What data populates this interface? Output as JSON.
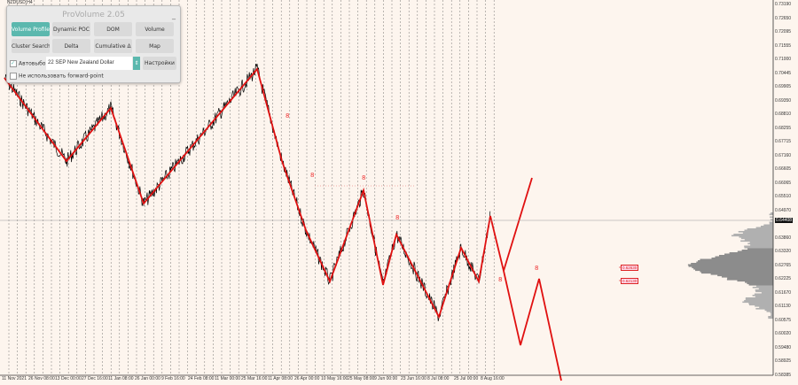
{
  "symbol": "NZDUSD,H4",
  "panel": {
    "title": "ProVolume 2.05",
    "minimize": "_",
    "buttons": [
      "Volume Profile",
      "Dynamic POC",
      "DOM",
      "Volume",
      "Cluster Search",
      "Delta",
      "Cumulative Δ",
      "Map"
    ],
    "active_button": "Volume Profile",
    "auto_select_label": "Автовыбор",
    "auto_select_checked": true,
    "instrument": "22 SEP New Zealand Dollar",
    "settings_label": "Настройки",
    "forward_point_label": "Не использовать forward-point",
    "forward_point_checked": false
  },
  "price_axis": [
    "0.73190",
    "0.72650",
    "0.72095",
    "0.71555",
    "0.71000",
    "0.70445",
    "0.69905",
    "0.69350",
    "0.68810",
    "0.68255",
    "0.67715",
    "0.67160",
    "0.66605",
    "0.66065",
    "0.65510",
    "0.64970",
    "0.64408",
    "0.63860",
    "0.63320",
    "0.62765",
    "0.62225",
    "0.61670",
    "0.61130",
    "0.60575",
    "0.60020",
    "0.59480",
    "0.58925",
    "0.58385"
  ],
  "current_price": "0.64408",
  "date_axis": [
    "11 Nov 2021",
    "26 Nov 08:00",
    "13 Dec 00:00",
    "27 Dec 16:00",
    "11 Jan 08:00",
    "26 Jan 00:00",
    "9 Feb 16:00",
    "24 Feb 08:00",
    "11 Mar 00:00",
    "25 Mar 16:00",
    "11 Apr 08:00",
    "26 Apr 00:00",
    "10 May 16:00",
    "25 May 08:00",
    "9 Jun 00:00",
    "23 Jun 16:00",
    "8 Jul 08:00",
    "25 Jul 00:00",
    "8 Aug 16:00"
  ],
  "levels": [
    "0.62630",
    "0.62130"
  ],
  "wave_labels": [
    "8",
    "8",
    "8",
    "8",
    "8",
    "8"
  ],
  "colors": {
    "background": "#fdf5ee",
    "zigzag": "#e01010",
    "price": "#000000",
    "profile": "#8c8c8c",
    "accent": "#5bb8ae"
  }
}
